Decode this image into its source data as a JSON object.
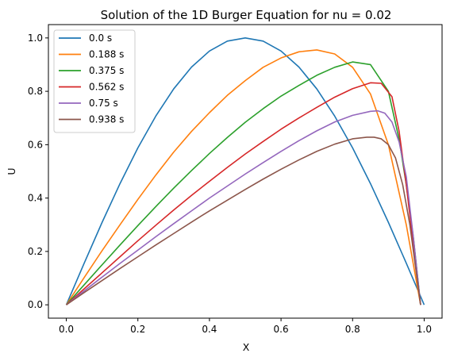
{
  "chart_data": {
    "type": "line",
    "title": "Solution of the 1D Burger Equation for nu = 0.02",
    "xlabel": "X",
    "ylabel": "U",
    "xlim": [
      -0.05,
      1.05
    ],
    "ylim": [
      -0.05,
      1.05
    ],
    "xticks": [
      "0.0",
      "0.2",
      "0.4",
      "0.6",
      "0.8",
      "1.0"
    ],
    "yticks": [
      "0.0",
      "0.2",
      "0.4",
      "0.6",
      "0.8",
      "1.0"
    ],
    "grid": false,
    "legend_position": "top-left",
    "series": [
      {
        "name": "0.0 s",
        "color": "#1f77b4",
        "x": [
          0,
          0.05,
          0.1,
          0.15,
          0.2,
          0.25,
          0.3,
          0.35,
          0.4,
          0.45,
          0.5,
          0.55,
          0.6,
          0.65,
          0.7,
          0.75,
          0.8,
          0.85,
          0.9,
          0.95,
          1.0
        ],
        "y": [
          0,
          0.156,
          0.309,
          0.454,
          0.588,
          0.707,
          0.809,
          0.891,
          0.951,
          0.988,
          1.0,
          0.988,
          0.951,
          0.891,
          0.809,
          0.707,
          0.588,
          0.454,
          0.309,
          0.156,
          0.0
        ]
      },
      {
        "name": "0.188 s",
        "color": "#ff7f0e",
        "x": [
          0,
          0.05,
          0.1,
          0.15,
          0.2,
          0.25,
          0.3,
          0.35,
          0.4,
          0.45,
          0.5,
          0.55,
          0.6,
          0.65,
          0.7,
          0.75,
          0.8,
          0.85,
          0.9,
          0.95,
          0.97,
          0.99
        ],
        "y": [
          0,
          0.102,
          0.203,
          0.3,
          0.395,
          0.486,
          0.572,
          0.65,
          0.72,
          0.785,
          0.84,
          0.89,
          0.925,
          0.948,
          0.955,
          0.94,
          0.89,
          0.79,
          0.6,
          0.3,
          0.15,
          0.0
        ]
      },
      {
        "name": "0.375 s",
        "color": "#2ca02c",
        "x": [
          0,
          0.05,
          0.1,
          0.15,
          0.2,
          0.25,
          0.3,
          0.35,
          0.4,
          0.45,
          0.5,
          0.55,
          0.6,
          0.65,
          0.7,
          0.75,
          0.8,
          0.85,
          0.9,
          0.93,
          0.95,
          0.97,
          0.99
        ],
        "y": [
          0,
          0.075,
          0.15,
          0.224,
          0.297,
          0.368,
          0.437,
          0.503,
          0.567,
          0.627,
          0.684,
          0.735,
          0.782,
          0.822,
          0.86,
          0.89,
          0.91,
          0.9,
          0.8,
          0.62,
          0.45,
          0.25,
          0.0
        ]
      },
      {
        "name": "0.562 s",
        "color": "#d62728",
        "x": [
          0,
          0.05,
          0.1,
          0.15,
          0.2,
          0.25,
          0.3,
          0.35,
          0.4,
          0.45,
          0.5,
          0.55,
          0.6,
          0.65,
          0.7,
          0.75,
          0.8,
          0.85,
          0.88,
          0.91,
          0.93,
          0.95,
          0.97,
          0.99
        ],
        "y": [
          0,
          0.06,
          0.12,
          0.18,
          0.24,
          0.298,
          0.355,
          0.41,
          0.463,
          0.515,
          0.565,
          0.612,
          0.658,
          0.7,
          0.74,
          0.778,
          0.81,
          0.832,
          0.83,
          0.78,
          0.65,
          0.45,
          0.22,
          0.0
        ]
      },
      {
        "name": "0.75 s",
        "color": "#9467bd",
        "x": [
          0,
          0.05,
          0.1,
          0.15,
          0.2,
          0.25,
          0.3,
          0.35,
          0.4,
          0.45,
          0.5,
          0.55,
          0.6,
          0.65,
          0.7,
          0.75,
          0.8,
          0.85,
          0.87,
          0.89,
          0.91,
          0.93,
          0.95,
          0.97,
          0.99
        ],
        "y": [
          0,
          0.052,
          0.104,
          0.155,
          0.205,
          0.255,
          0.304,
          0.352,
          0.4,
          0.445,
          0.49,
          0.533,
          0.575,
          0.615,
          0.652,
          0.685,
          0.71,
          0.725,
          0.727,
          0.718,
          0.685,
          0.61,
          0.48,
          0.25,
          0.0
        ]
      },
      {
        "name": "0.938 s",
        "color": "#8c564b",
        "x": [
          0,
          0.05,
          0.1,
          0.15,
          0.2,
          0.25,
          0.3,
          0.35,
          0.4,
          0.45,
          0.5,
          0.55,
          0.6,
          0.65,
          0.7,
          0.75,
          0.8,
          0.84,
          0.86,
          0.88,
          0.9,
          0.92,
          0.94,
          0.96,
          0.98,
          0.99
        ],
        "y": [
          0,
          0.046,
          0.091,
          0.136,
          0.18,
          0.224,
          0.267,
          0.31,
          0.352,
          0.392,
          0.432,
          0.471,
          0.508,
          0.543,
          0.575,
          0.602,
          0.622,
          0.628,
          0.628,
          0.622,
          0.6,
          0.55,
          0.45,
          0.3,
          0.1,
          0.0
        ]
      }
    ]
  }
}
